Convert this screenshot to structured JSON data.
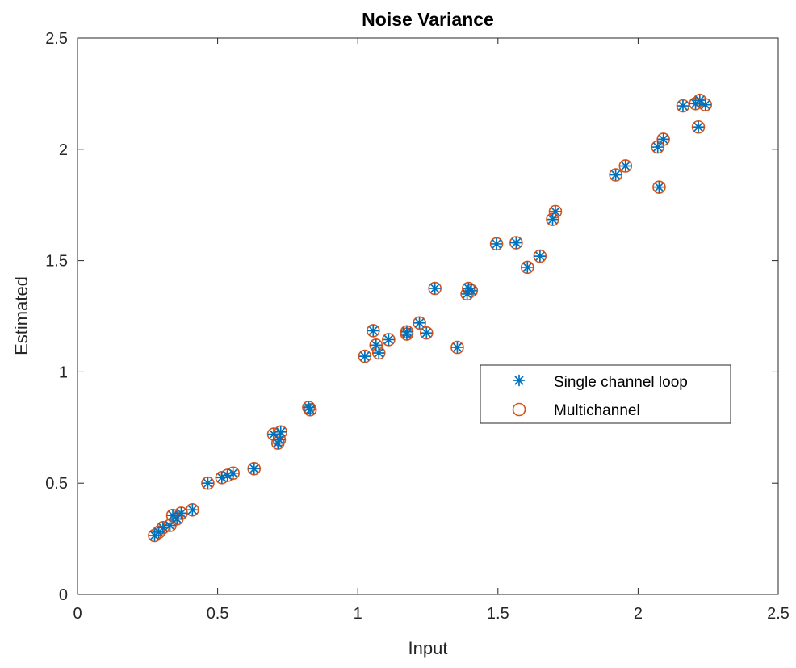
{
  "chart_data": {
    "type": "scatter",
    "title": "Noise Variance",
    "xlabel": "Input",
    "ylabel": "Estimated",
    "xlim": [
      0,
      2.5
    ],
    "ylim": [
      0,
      2.5
    ],
    "xticks": [
      0,
      0.5,
      1,
      1.5,
      2,
      2.5
    ],
    "xtick_labels": [
      "0",
      "0.5",
      "1",
      "1.5",
      "2",
      "2.5"
    ],
    "yticks": [
      0,
      0.5,
      1,
      1.5,
      2,
      2.5
    ],
    "ytick_labels": [
      "0",
      "0.5",
      "1",
      "1.5",
      "2",
      "2.5"
    ],
    "grid": false,
    "legend_position": "middle-right",
    "series": [
      {
        "name": "Single channel loop",
        "marker": "asterisk",
        "color": "#0072BD",
        "points": [
          [
            0.275,
            0.265
          ],
          [
            0.29,
            0.28
          ],
          [
            0.305,
            0.3
          ],
          [
            0.33,
            0.31
          ],
          [
            0.34,
            0.355
          ],
          [
            0.355,
            0.34
          ],
          [
            0.37,
            0.365
          ],
          [
            0.41,
            0.38
          ],
          [
            0.465,
            0.5
          ],
          [
            0.515,
            0.525
          ],
          [
            0.535,
            0.535
          ],
          [
            0.555,
            0.545
          ],
          [
            0.63,
            0.565
          ],
          [
            0.7,
            0.72
          ],
          [
            0.715,
            0.68
          ],
          [
            0.72,
            0.695
          ],
          [
            0.725,
            0.73
          ],
          [
            0.825,
            0.84
          ],
          [
            0.83,
            0.83
          ],
          [
            1.025,
            1.07
          ],
          [
            1.055,
            1.185
          ],
          [
            1.065,
            1.12
          ],
          [
            1.075,
            1.085
          ],
          [
            1.11,
            1.145
          ],
          [
            1.175,
            1.18
          ],
          [
            1.175,
            1.17
          ],
          [
            1.22,
            1.22
          ],
          [
            1.245,
            1.175
          ],
          [
            1.275,
            1.375
          ],
          [
            1.355,
            1.11
          ],
          [
            1.39,
            1.35
          ],
          [
            1.395,
            1.375
          ],
          [
            1.405,
            1.365
          ],
          [
            1.495,
            1.575
          ],
          [
            1.565,
            1.58
          ],
          [
            1.605,
            1.47
          ],
          [
            1.65,
            1.52
          ],
          [
            1.695,
            1.685
          ],
          [
            1.705,
            1.72
          ],
          [
            1.92,
            1.885
          ],
          [
            1.955,
            1.925
          ],
          [
            2.07,
            2.01
          ],
          [
            2.075,
            1.83
          ],
          [
            2.09,
            2.045
          ],
          [
            2.16,
            2.195
          ],
          [
            2.205,
            2.205
          ],
          [
            2.215,
            2.1
          ],
          [
            2.22,
            2.22
          ],
          [
            2.24,
            2.2
          ]
        ]
      },
      {
        "name": "Multichannel",
        "marker": "circle",
        "color": "#D95319",
        "points": [
          [
            0.275,
            0.265
          ],
          [
            0.29,
            0.28
          ],
          [
            0.305,
            0.3
          ],
          [
            0.33,
            0.31
          ],
          [
            0.34,
            0.355
          ],
          [
            0.355,
            0.34
          ],
          [
            0.37,
            0.365
          ],
          [
            0.41,
            0.38
          ],
          [
            0.465,
            0.5
          ],
          [
            0.515,
            0.525
          ],
          [
            0.535,
            0.535
          ],
          [
            0.555,
            0.545
          ],
          [
            0.63,
            0.565
          ],
          [
            0.7,
            0.72
          ],
          [
            0.715,
            0.68
          ],
          [
            0.72,
            0.695
          ],
          [
            0.725,
            0.73
          ],
          [
            0.825,
            0.84
          ],
          [
            0.83,
            0.83
          ],
          [
            1.025,
            1.07
          ],
          [
            1.055,
            1.185
          ],
          [
            1.065,
            1.12
          ],
          [
            1.075,
            1.085
          ],
          [
            1.11,
            1.145
          ],
          [
            1.175,
            1.18
          ],
          [
            1.175,
            1.17
          ],
          [
            1.22,
            1.22
          ],
          [
            1.245,
            1.175
          ],
          [
            1.275,
            1.375
          ],
          [
            1.355,
            1.11
          ],
          [
            1.39,
            1.35
          ],
          [
            1.395,
            1.375
          ],
          [
            1.405,
            1.365
          ],
          [
            1.495,
            1.575
          ],
          [
            1.565,
            1.58
          ],
          [
            1.605,
            1.47
          ],
          [
            1.65,
            1.52
          ],
          [
            1.695,
            1.685
          ],
          [
            1.705,
            1.72
          ],
          [
            1.92,
            1.885
          ],
          [
            1.955,
            1.925
          ],
          [
            2.07,
            2.01
          ],
          [
            2.075,
            1.83
          ],
          [
            2.09,
            2.045
          ],
          [
            2.16,
            2.195
          ],
          [
            2.205,
            2.205
          ],
          [
            2.215,
            2.1
          ],
          [
            2.22,
            2.22
          ],
          [
            2.24,
            2.2
          ]
        ]
      }
    ]
  }
}
